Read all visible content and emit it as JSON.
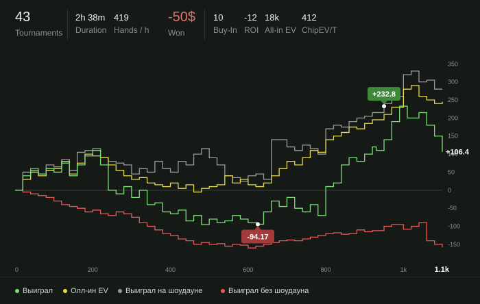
{
  "stats": [
    {
      "id": "tournaments",
      "value": "43",
      "label": "Tournaments"
    },
    {
      "id": "duration",
      "value": "2h 38m",
      "label": "Duration"
    },
    {
      "id": "hands",
      "value": "419",
      "label": "Hands / h"
    },
    {
      "id": "won",
      "value": "-50$",
      "label": "Won"
    },
    {
      "id": "buyin",
      "value": "10",
      "label": "Buy-In"
    },
    {
      "id": "roi",
      "value": "-12",
      "label": "ROI"
    },
    {
      "id": "allin",
      "value": "18k",
      "label": "All-in EV"
    },
    {
      "id": "chipev",
      "value": "412",
      "label": "ChipEV/T"
    }
  ],
  "legend": [
    {
      "label": "Выиграл",
      "color": "#7ee07a"
    },
    {
      "label": "Олл-ин EV",
      "color": "#e8d84a"
    },
    {
      "label": "Выиграл на шоудауне",
      "color": "#9a9a9a"
    },
    {
      "label": "Выиграл без шоудауна",
      "color": "#e85a5a"
    }
  ],
  "chart_data": {
    "type": "line",
    "xlim": [
      0,
      1100
    ],
    "ylim": [
      -190,
      360
    ],
    "x_ticks": [
      {
        "v": 0,
        "t": "0"
      },
      {
        "v": 200,
        "t": "200"
      },
      {
        "v": 400,
        "t": "400"
      },
      {
        "v": 600,
        "t": "600"
      },
      {
        "v": 800,
        "t": "800"
      },
      {
        "v": 1000,
        "t": "1k"
      },
      {
        "v": 1100,
        "t": "1.1k"
      }
    ],
    "y_ticks": [
      350,
      300,
      250,
      200,
      150,
      100,
      50,
      0,
      -50,
      -100,
      -150
    ],
    "annotations": [
      {
        "text": "+232.8",
        "x": 950,
        "y": 232.8,
        "color": "#3f8a3a"
      },
      {
        "text": "-94.17",
        "x": 625,
        "y": -94.17,
        "color": "#a33a3a"
      }
    ],
    "end_label": "+106.4",
    "series": [
      {
        "name": "Выиграл",
        "color": "#7ee07a",
        "x": [
          0,
          20,
          40,
          60,
          80,
          100,
          120,
          140,
          160,
          180,
          200,
          220,
          240,
          260,
          280,
          300,
          320,
          340,
          360,
          380,
          400,
          420,
          440,
          460,
          480,
          500,
          520,
          540,
          560,
          580,
          600,
          625,
          640,
          660,
          680,
          700,
          720,
          740,
          760,
          780,
          800,
          820,
          840,
          860,
          880,
          900,
          920,
          930,
          950,
          970,
          990,
          1010,
          1040,
          1060,
          1080,
          1100
        ],
        "y": [
          0,
          40,
          55,
          45,
          60,
          50,
          75,
          40,
          70,
          95,
          110,
          70,
          0,
          -10,
          10,
          -20,
          0,
          -40,
          -35,
          -60,
          -65,
          -55,
          -85,
          -70,
          -95,
          -80,
          -90,
          -85,
          -70,
          -80,
          -90,
          -94.17,
          -60,
          -30,
          -45,
          -20,
          -50,
          -60,
          -40,
          -70,
          10,
          20,
          70,
          90,
          80,
          100,
          120,
          110,
          140,
          190,
          232.8,
          200,
          215,
          180,
          150,
          106.4
        ]
      },
      {
        "name": "Олл-ин EV",
        "color": "#e8d84a",
        "x": [
          0,
          20,
          40,
          60,
          80,
          100,
          120,
          140,
          160,
          180,
          200,
          220,
          240,
          260,
          280,
          300,
          320,
          340,
          360,
          380,
          400,
          420,
          440,
          460,
          480,
          500,
          520,
          540,
          560,
          580,
          600,
          620,
          640,
          660,
          680,
          700,
          720,
          740,
          760,
          780,
          800,
          820,
          840,
          860,
          880,
          900,
          920,
          950,
          970,
          1000,
          1020,
          1040,
          1060,
          1080,
          1100
        ],
        "y": [
          0,
          30,
          50,
          40,
          55,
          60,
          80,
          45,
          75,
          100,
          95,
          90,
          70,
          55,
          40,
          30,
          35,
          20,
          15,
          10,
          20,
          5,
          15,
          -5,
          5,
          10,
          15,
          40,
          20,
          30,
          15,
          10,
          20,
          40,
          60,
          80,
          70,
          90,
          110,
          105,
          140,
          150,
          160,
          175,
          170,
          185,
          195,
          210,
          230,
          280,
          290,
          260,
          250,
          240,
          245
        ]
      },
      {
        "name": "Выиграл на шоудауне",
        "color": "#9a9a9a",
        "x": [
          0,
          20,
          40,
          60,
          80,
          100,
          120,
          140,
          160,
          180,
          200,
          220,
          240,
          260,
          280,
          300,
          320,
          340,
          360,
          380,
          400,
          420,
          440,
          460,
          480,
          500,
          520,
          540,
          560,
          580,
          600,
          620,
          640,
          660,
          680,
          700,
          720,
          740,
          760,
          780,
          800,
          820,
          840,
          860,
          880,
          900,
          920,
          950,
          970,
          1000,
          1020,
          1040,
          1060,
          1080,
          1100
        ],
        "y": [
          0,
          50,
          60,
          45,
          70,
          65,
          85,
          55,
          105,
          110,
          115,
          90,
          80,
          75,
          70,
          45,
          60,
          50,
          80,
          60,
          50,
          80,
          70,
          100,
          115,
          90,
          70,
          40,
          35,
          25,
          40,
          45,
          30,
          140,
          140,
          120,
          110,
          125,
          115,
          100,
          170,
          180,
          175,
          190,
          200,
          205,
          215,
          240,
          260,
          320,
          330,
          300,
          305,
          280,
          280
        ]
      },
      {
        "name": "Выиграл без шоудауна",
        "color": "#e85a5a",
        "x": [
          0,
          20,
          40,
          60,
          80,
          100,
          120,
          140,
          160,
          180,
          200,
          220,
          240,
          260,
          280,
          300,
          320,
          340,
          360,
          380,
          400,
          420,
          440,
          460,
          480,
          500,
          520,
          540,
          560,
          580,
          600,
          620,
          640,
          660,
          680,
          700,
          720,
          740,
          760,
          780,
          800,
          820,
          840,
          860,
          880,
          900,
          920,
          950,
          970,
          1000,
          1020,
          1040,
          1060,
          1080,
          1100
        ],
        "y": [
          0,
          -5,
          -10,
          -15,
          -20,
          -30,
          -40,
          -45,
          -50,
          -60,
          -55,
          -65,
          -70,
          -60,
          -65,
          -75,
          -90,
          -100,
          -110,
          -120,
          -125,
          -135,
          -140,
          -150,
          -145,
          -150,
          -148,
          -155,
          -150,
          -152,
          -160,
          -155,
          -150,
          -145,
          -140,
          -138,
          -140,
          -135,
          -130,
          -125,
          -120,
          -118,
          -122,
          -120,
          -110,
          -115,
          -112,
          -100,
          -95,
          -108,
          -100,
          -90,
          -140,
          -150,
          -158
        ]
      }
    ]
  }
}
